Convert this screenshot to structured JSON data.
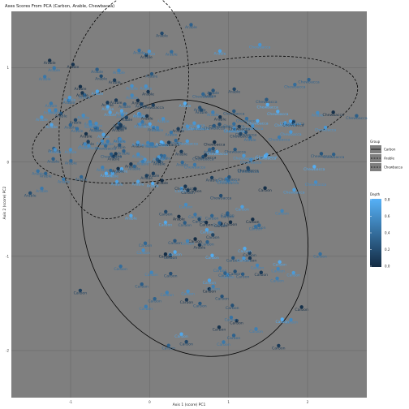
{
  "chart_data": {
    "type": "scatter",
    "title": "Axes Scores From PCA (Carbon, Arable, Chewbacca)",
    "xlabel": "Axis 1 (score) PC1",
    "ylabel": "Axis 2 (score) PC2",
    "xlim": [
      -1.5,
      1.5
    ],
    "ylim": [
      -2.5,
      1.6
    ],
    "xticks": [
      "-1",
      "0",
      "1",
      "2"
    ],
    "yticks": [
      "-2",
      "-1",
      "0",
      "1"
    ],
    "grid": true,
    "panel_background": "#7f7f7f",
    "groups": [
      {
        "label": "Arable",
        "count": 140,
        "cx": -0.55,
        "cy": 0.35,
        "sx": 0.42,
        "sy": 0.45
      },
      {
        "label": "Carbon",
        "count": 80,
        "cx": 0.2,
        "cy": -1.0,
        "sx": 0.32,
        "sy": 0.4
      },
      {
        "label": "Chewbacca",
        "count": 60,
        "cx": 0.55,
        "cy": 0.3,
        "sx": 0.45,
        "sy": 0.3
      }
    ],
    "ellipses": [
      {
        "group": "Carbon",
        "linetype": "solid",
        "cx": 0.05,
        "cy": -0.7,
        "rx": 0.92,
        "ry": 1.4,
        "angle": -24
      },
      {
        "group": "Arable",
        "linetype": "dashed",
        "cx": -0.55,
        "cy": 0.6,
        "rx": 0.52,
        "ry": 1.22,
        "angle": 12
      },
      {
        "group": "Chewbacca",
        "linetype": "dashed",
        "cx": 0.05,
        "cy": 0.45,
        "rx": 1.4,
        "ry": 0.58,
        "angle": -12
      }
    ],
    "legend_linetype": {
      "title": "Group",
      "position": "right",
      "entries": [
        "Carbon",
        "Arable",
        "Chewbacca"
      ]
    },
    "legend_color": {
      "title": "Depth",
      "position": "right",
      "low": "#132b43",
      "high": "#56b1f7",
      "labels": [
        "0.8",
        "0.6",
        "0.4",
        "0.2",
        "0.0"
      ]
    }
  }
}
